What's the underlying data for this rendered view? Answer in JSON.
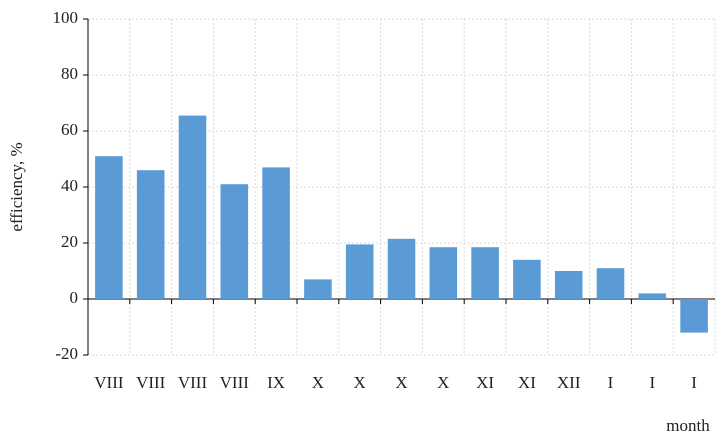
{
  "chart_data": {
    "type": "bar",
    "y_label": "efficiency, %",
    "x_label": "month",
    "categories": [
      "VIII",
      "VIII",
      "VIII",
      "VIII",
      "IX",
      "X",
      "X",
      "X",
      "X",
      "XI",
      "XI",
      "XII",
      "I",
      "I",
      "I"
    ],
    "values": [
      51,
      46,
      65.5,
      41,
      47,
      7,
      19.5,
      21.5,
      18.5,
      18.5,
      14,
      10,
      11,
      2,
      -12
    ],
    "color": "#5b9bd5",
    "ylim": [
      -20,
      100
    ],
    "yticks": [
      -20,
      0,
      20,
      40,
      60,
      80,
      100
    ],
    "grid": true
  }
}
